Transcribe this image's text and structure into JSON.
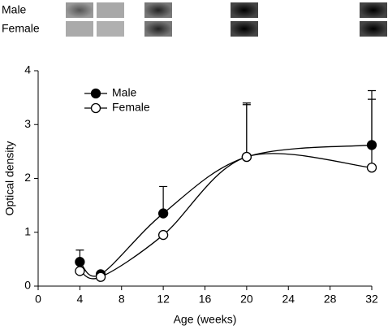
{
  "blot": {
    "rows": [
      "Male",
      "Female"
    ]
  },
  "chart_data": {
    "type": "line",
    "x_label": "Age (weeks)",
    "y_label": "Optical density",
    "x": [
      4,
      6,
      12,
      20,
      32
    ],
    "series": [
      {
        "name": "Male",
        "color": "#000000",
        "marker_fill": "#000000",
        "values": [
          0.45,
          0.22,
          1.35,
          2.4,
          2.62
        ],
        "errors": [
          0.22,
          0.02,
          0.5,
          1.0,
          1.01
        ]
      },
      {
        "name": "Female",
        "color": "#000000",
        "marker_fill": "#ffffff",
        "values": [
          0.28,
          0.17,
          0.95,
          2.4,
          2.2
        ],
        "errors": [
          0.0,
          0.0,
          0.0,
          0.97,
          1.27
        ]
      }
    ],
    "xlim": [
      0,
      32
    ],
    "ylim": [
      0,
      4
    ],
    "xticks": [
      0,
      4,
      8,
      12,
      16,
      20,
      24,
      28,
      32
    ],
    "yticks": [
      0,
      1,
      2,
      3,
      4
    ],
    "legend": "upper-left",
    "grid": false
  }
}
